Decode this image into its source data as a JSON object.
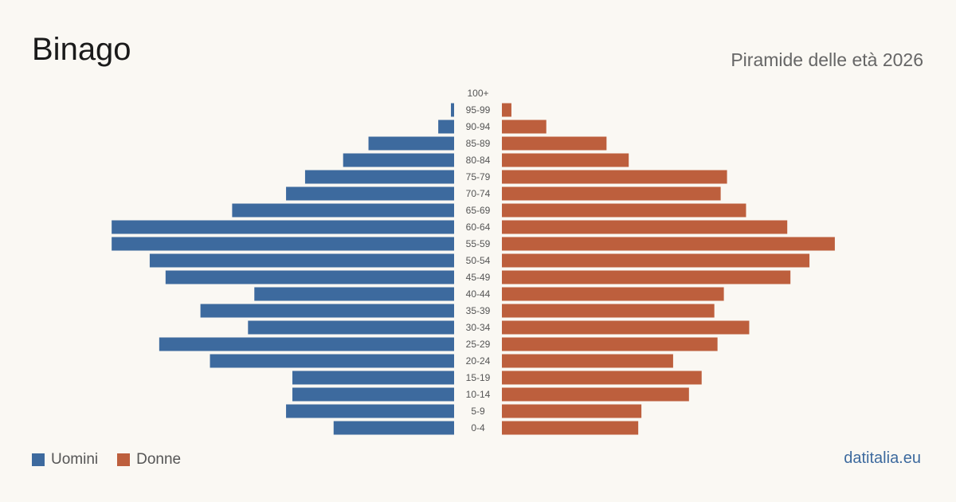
{
  "header": {
    "title": "Binago",
    "subtitle": "Piramide delle età 2026"
  },
  "legend": {
    "men_label": "Uomini",
    "women_label": "Donne"
  },
  "source": "datitalia.eu",
  "colors": {
    "men": "#3d6a9e",
    "women": "#bd5f3d",
    "source": "#3d6a9e"
  },
  "chart_data": {
    "type": "bar",
    "orientation": "horizontal-pyramid",
    "categories": [
      "100+",
      "95-99",
      "90-94",
      "85-89",
      "80-84",
      "75-79",
      "70-74",
      "65-69",
      "60-64",
      "55-59",
      "50-54",
      "45-49",
      "40-44",
      "35-39",
      "30-34",
      "25-29",
      "20-24",
      "15-19",
      "10-14",
      "5-9",
      "0-4"
    ],
    "series": [
      {
        "name": "Uomini",
        "values": [
          0,
          1,
          5,
          27,
          35,
          47,
          53,
          70,
          108,
          108,
          96,
          91,
          63,
          80,
          65,
          93,
          77,
          51,
          51,
          53,
          38
        ]
      },
      {
        "name": "Donne",
        "values": [
          0,
          3,
          14,
          33,
          40,
          71,
          69,
          77,
          90,
          105,
          97,
          91,
          70,
          67,
          78,
          68,
          54,
          63,
          59,
          44,
          43
        ]
      }
    ],
    "legend_position": "bottom-left",
    "grid": false
  }
}
